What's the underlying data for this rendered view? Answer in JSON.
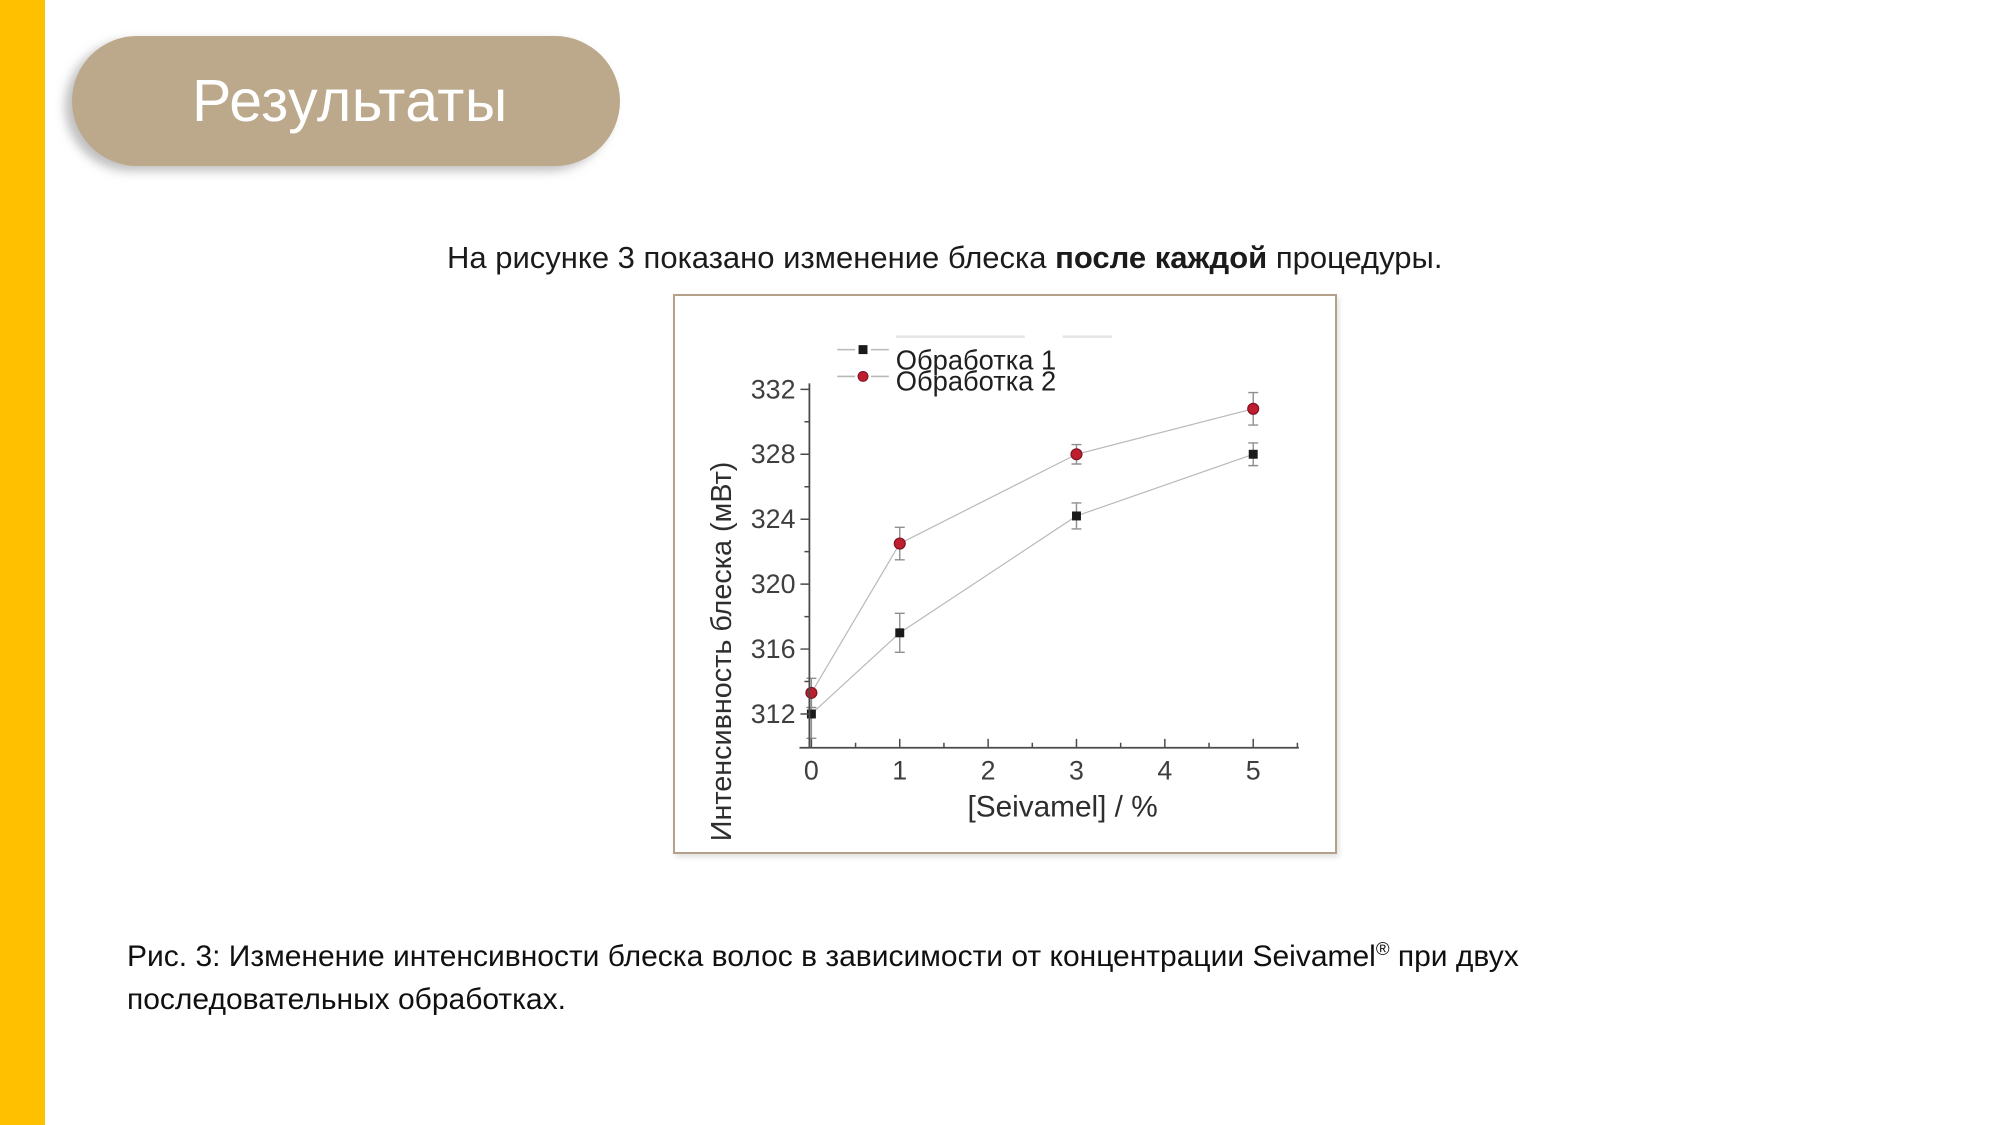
{
  "slide": {
    "title": "Результаты",
    "intro": {
      "pre": "На рисунке 3 показано изменение блеска ",
      "bold": "после каждой",
      "post": " процедуры."
    },
    "caption": {
      "line1_pre": "Рис. 3: Изменение интенсивности блеска волос в зависимости от концентрации Seivamel",
      "sup": "®",
      "line1_post": " при двух",
      "line2": "последовательных обработках."
    }
  },
  "colors": {
    "accent_bar": "#ffc000",
    "title_pill": "#bca98c",
    "figure_border": "#b3a189",
    "series1": "#1a1a1a",
    "series2": "#bf1e2e",
    "connector_gray": "#b9b9b9",
    "axis_gray": "#4a4a4a"
  },
  "chart_data": {
    "type": "line",
    "title": "",
    "xlabel": "[Seivamel] / %",
    "ylabel": "Интенсивность блеска (мВт)",
    "x": [
      0,
      1,
      3,
      5
    ],
    "series": [
      {
        "name": "Обработка 1",
        "marker": "square",
        "color": "#1a1a1a",
        "values": [
          312.0,
          317.0,
          324.2,
          328.0
        ],
        "errors": [
          1.5,
          1.2,
          0.8,
          0.7
        ]
      },
      {
        "name": "Обработка 2",
        "marker": "circle",
        "color": "#bf1e2e",
        "values": [
          313.3,
          322.5,
          328.0,
          330.8
        ],
        "errors": [
          0.9,
          1.0,
          0.6,
          1.0
        ]
      }
    ],
    "x_ticks": [
      0,
      1,
      2,
      3,
      4,
      5
    ],
    "x_minor_ticks": [
      0.5,
      1.5,
      2.5,
      3.5,
      4.5,
      5.5
    ],
    "y_ticks": [
      312,
      316,
      320,
      324,
      328,
      332
    ],
    "y_minor_ticks": [
      314,
      318,
      322,
      326,
      330
    ],
    "xlim": [
      0,
      5.5
    ],
    "ylim": [
      310,
      333.5
    ],
    "grid": false,
    "legend_position": "top-left-inside",
    "error_bars": true
  }
}
